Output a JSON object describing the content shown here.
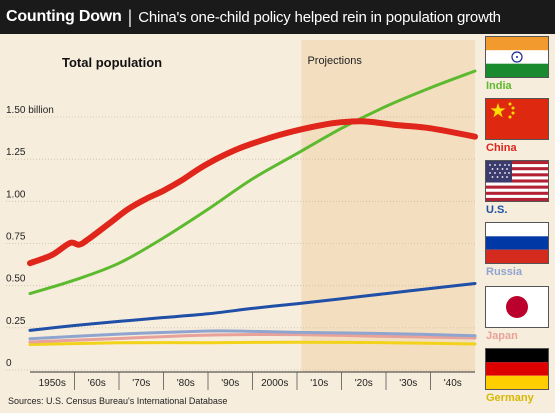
{
  "header": {
    "title": "Counting Down",
    "separator": "|",
    "subtitle": "China's one-child policy helped rein in population growth"
  },
  "source": "Sources: U.S. Census Bureau's International Database",
  "colors": {
    "India": "#5dba2f",
    "China": "#e0251b",
    "US": "#1f4fa6",
    "Russia": "#8fa5cf",
    "Japan": "#e9a29a",
    "Germany": "#f2d31a",
    "projection_shade": "#f3dfc0",
    "header_bg": "#1a1a1a"
  },
  "flags": [
    {
      "label": "India",
      "icon": "india-flag-icon"
    },
    {
      "label": "China",
      "icon": "china-flag-icon"
    },
    {
      "label": "U.S.",
      "icon": "us-flag-icon"
    },
    {
      "label": "Russia",
      "icon": "russia-flag-icon"
    },
    {
      "label": "Japan",
      "icon": "japan-flag-icon"
    },
    {
      "label": "Germany",
      "icon": "germany-flag-icon"
    }
  ],
  "chart_data": {
    "type": "line",
    "title": "Total population",
    "projection_label": "Projections",
    "projection_start": 2011,
    "x_range": [
      1950,
      2050
    ],
    "ylim": [
      0,
      1.6
    ],
    "y_ticks": [
      {
        "value": 0,
        "label": "0"
      },
      {
        "value": 0.25,
        "label": "0.25"
      },
      {
        "value": 0.5,
        "label": "0.50"
      },
      {
        "value": 0.75,
        "label": "0.75"
      },
      {
        "value": 1.0,
        "label": "1.00"
      },
      {
        "value": 1.25,
        "label": "1.25"
      },
      {
        "value": 1.5,
        "label": "1.50 billion"
      }
    ],
    "x_ticks": [
      {
        "value": 1955,
        "label": "1950s"
      },
      {
        "value": 1965,
        "label": "'60s"
      },
      {
        "value": 1975,
        "label": "'70s"
      },
      {
        "value": 1985,
        "label": "'80s"
      },
      {
        "value": 1995,
        "label": "'90s"
      },
      {
        "value": 2005,
        "label": "2000s"
      },
      {
        "value": 2015,
        "label": "'10s"
      },
      {
        "value": 2025,
        "label": "'20s"
      },
      {
        "value": 2035,
        "label": "'30s"
      },
      {
        "value": 2045,
        "label": "'40s"
      }
    ],
    "series": [
      {
        "name": "Germany",
        "color_key": "Germany",
        "width": 3,
        "x": [
          1950,
          1970,
          1990,
          2010,
          2030,
          2050
        ],
        "y": [
          0.068,
          0.078,
          0.079,
          0.082,
          0.079,
          0.071
        ]
      },
      {
        "name": "Japan",
        "color_key": "Japan",
        "width": 3,
        "x": [
          1950,
          1970,
          1990,
          2010,
          2030,
          2050
        ],
        "y": [
          0.083,
          0.104,
          0.124,
          0.127,
          0.116,
          0.107
        ]
      },
      {
        "name": "Russia",
        "color_key": "Russia",
        "width": 3,
        "x": [
          1950,
          1970,
          1990,
          2000,
          2010,
          2030,
          2050
        ],
        "y": [
          0.102,
          0.13,
          0.148,
          0.146,
          0.14,
          0.133,
          0.12
        ]
      },
      {
        "name": "U.S.",
        "color_key": "US",
        "width": 3,
        "x": [
          1950,
          1960,
          1970,
          1980,
          1990,
          2000,
          2010,
          2020,
          2030,
          2040,
          2050
        ],
        "y": [
          0.152,
          0.181,
          0.205,
          0.228,
          0.25,
          0.282,
          0.31,
          0.34,
          0.37,
          0.4,
          0.43
        ]
      },
      {
        "name": "India",
        "color_key": "India",
        "width": 3,
        "x": [
          1950,
          1960,
          1970,
          1980,
          1990,
          2000,
          2010,
          2020,
          2030,
          2040,
          2050
        ],
        "y": [
          0.37,
          0.45,
          0.55,
          0.7,
          0.87,
          1.05,
          1.2,
          1.35,
          1.48,
          1.59,
          1.69
        ]
      },
      {
        "name": "China",
        "color_key": "China",
        "width": 6,
        "x": [
          1950,
          1955,
          1959,
          1961,
          1963,
          1968,
          1972,
          1976,
          1980,
          1984,
          1988,
          1992,
          1996,
          2000,
          2006,
          2012,
          2018,
          2022,
          2026,
          2032,
          2040,
          2050
        ],
        "y": [
          0.55,
          0.6,
          0.67,
          0.66,
          0.69,
          0.79,
          0.87,
          0.93,
          0.98,
          1.04,
          1.11,
          1.17,
          1.22,
          1.26,
          1.31,
          1.35,
          1.38,
          1.39,
          1.39,
          1.37,
          1.35,
          1.3
        ]
      }
    ]
  }
}
